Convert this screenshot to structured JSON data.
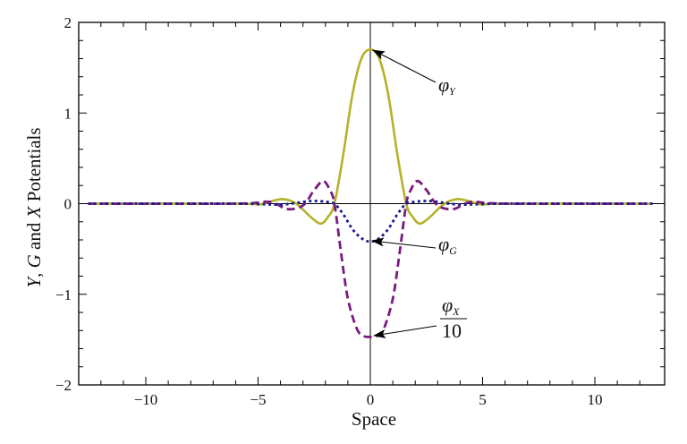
{
  "chart_data": {
    "type": "line",
    "title": "",
    "xlabel": "Space",
    "ylabel": "Y, G and X Potentials",
    "xlim": [
      -13,
      13
    ],
    "ylim": [
      -2,
      2
    ],
    "grid": false,
    "x_ticks": [
      -10,
      -5,
      0,
      5,
      10
    ],
    "x_tick_labels": [
      "−10",
      "−5",
      "0",
      "5",
      "10"
    ],
    "y_ticks": [
      -2,
      -1,
      0,
      1,
      2
    ],
    "y_tick_labels": [
      "−2",
      "−1",
      "0",
      "1",
      "2"
    ],
    "x_domain": [
      -12.57,
      12.57
    ],
    "series": [
      {
        "name": "φY",
        "style": "solid",
        "color": "#b5b22a",
        "x": [
          -6,
          -5,
          -4.5,
          -3.9,
          -3.3,
          -2.6,
          -2.2,
          -1.9,
          -1.6,
          -1.2,
          -0.8,
          -0.4,
          0,
          0.4,
          0.8,
          1.2,
          1.6,
          1.9,
          2.2,
          2.6,
          3.3,
          3.9,
          4.5,
          5,
          6
        ],
        "values": [
          0,
          -0.01,
          0.02,
          0.05,
          0.0,
          -0.16,
          -0.22,
          -0.15,
          0.0,
          0.55,
          1.2,
          1.6,
          1.7,
          1.6,
          1.2,
          0.55,
          0.0,
          -0.15,
          -0.22,
          -0.16,
          0.0,
          0.05,
          0.02,
          -0.01,
          0
        ]
      },
      {
        "name": "φG",
        "style": "dotted",
        "color": "#1a1a8c",
        "x": [
          -6,
          -4,
          -3,
          -2.5,
          -2,
          -1.6,
          -1.2,
          -0.8,
          -0.4,
          0,
          0.4,
          0.8,
          1.2,
          1.6,
          2,
          2.5,
          3,
          4,
          6
        ],
        "values": [
          0,
          -0.01,
          0.02,
          0.03,
          0.02,
          0.0,
          -0.12,
          -0.28,
          -0.38,
          -0.42,
          -0.38,
          -0.28,
          -0.12,
          0.0,
          0.02,
          0.03,
          0.02,
          -0.01,
          0
        ]
      },
      {
        "name": "φX/10",
        "style": "dashed",
        "color": "#7a1a80",
        "x": [
          -6,
          -4.5,
          -3.7,
          -3,
          -2.5,
          -2.1,
          -1.8,
          -1.6,
          -1.3,
          -1,
          -0.6,
          -0.3,
          0,
          0.3,
          0.6,
          1,
          1.3,
          1.6,
          1.8,
          2.1,
          2.5,
          3,
          3.7,
          4.5,
          6
        ],
        "values": [
          0,
          0.02,
          -0.06,
          -0.02,
          0.15,
          0.25,
          0.15,
          0.0,
          -0.55,
          -1.05,
          -1.38,
          -1.46,
          -1.47,
          -1.46,
          -1.38,
          -1.05,
          -0.55,
          0.0,
          0.15,
          0.25,
          0.15,
          -0.02,
          -0.06,
          0.02,
          0
        ]
      }
    ],
    "annotations": [
      {
        "label": "φY",
        "base": "φ",
        "sub": "Y",
        "points_to": [
          0,
          1.7
        ],
        "text_at": [
          4.3,
          1.3
        ]
      },
      {
        "label": "φG",
        "base": "φ",
        "sub": "G",
        "points_to": [
          0,
          -0.42
        ],
        "text_at": [
          4.3,
          -0.48
        ]
      },
      {
        "label": "φX/10",
        "base": "φ",
        "sub": "X",
        "denominator": "10",
        "points_to": [
          0,
          -1.47
        ],
        "text_at": [
          4.3,
          -1.3
        ]
      }
    ]
  },
  "labels": {
    "xlabel": "Space",
    "ylabel_parts": [
      "Y",
      ", ",
      "G",
      " and ",
      "X",
      " Potentials"
    ],
    "phi": "φ",
    "sub_y": "Y",
    "sub_g": "G",
    "sub_x": "X",
    "ten": "10"
  }
}
